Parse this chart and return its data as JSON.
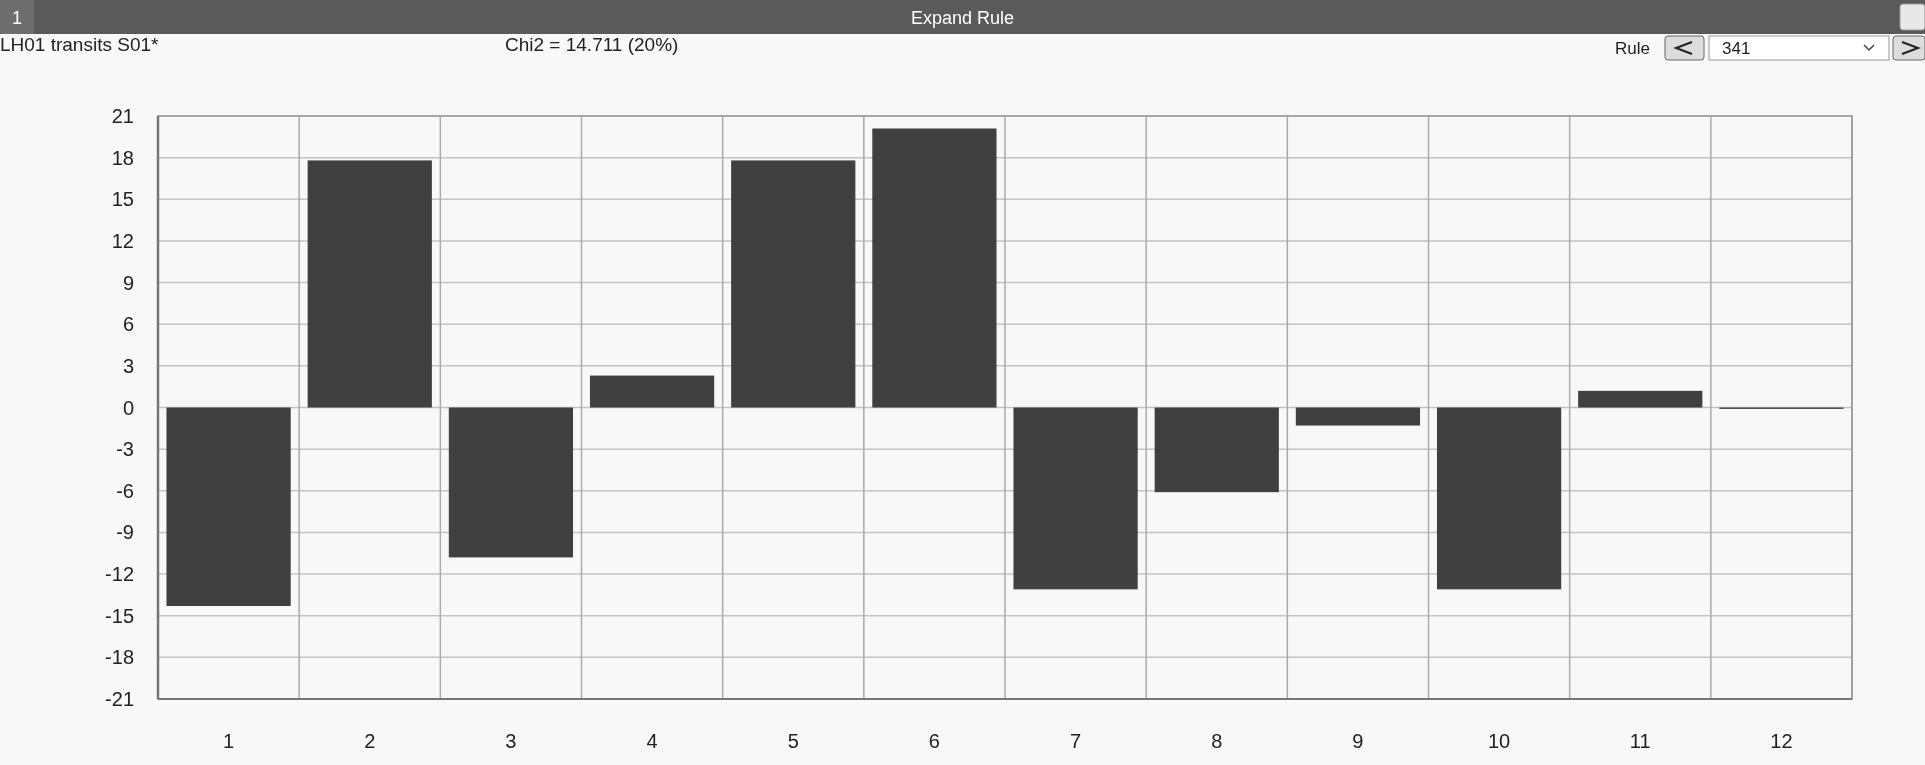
{
  "chart_data": {
    "type": "bar",
    "title": "Expand Rule",
    "subtitle": "LH01 transits S01*",
    "annotations": [
      "1",
      "Chi2 = 14.711 (20%)",
      "Rule",
      "341"
    ],
    "categories": [
      "1",
      "2",
      "3",
      "4",
      "5",
      "6",
      "7",
      "8",
      "9",
      "10",
      "11",
      "12"
    ],
    "values": [
      -14.3,
      17.8,
      -10.8,
      2.3,
      17.8,
      20.1,
      -13.1,
      -6.1,
      -1.3,
      -13.1,
      1.2,
      -0.1
    ],
    "color": "#404040",
    "ylim": [
      -21,
      21
    ],
    "yticks": [
      -21,
      -18,
      -15,
      -12,
      -9,
      -6,
      -3,
      0,
      3,
      6,
      9,
      12,
      15,
      18,
      21
    ],
    "grid": true
  }
}
